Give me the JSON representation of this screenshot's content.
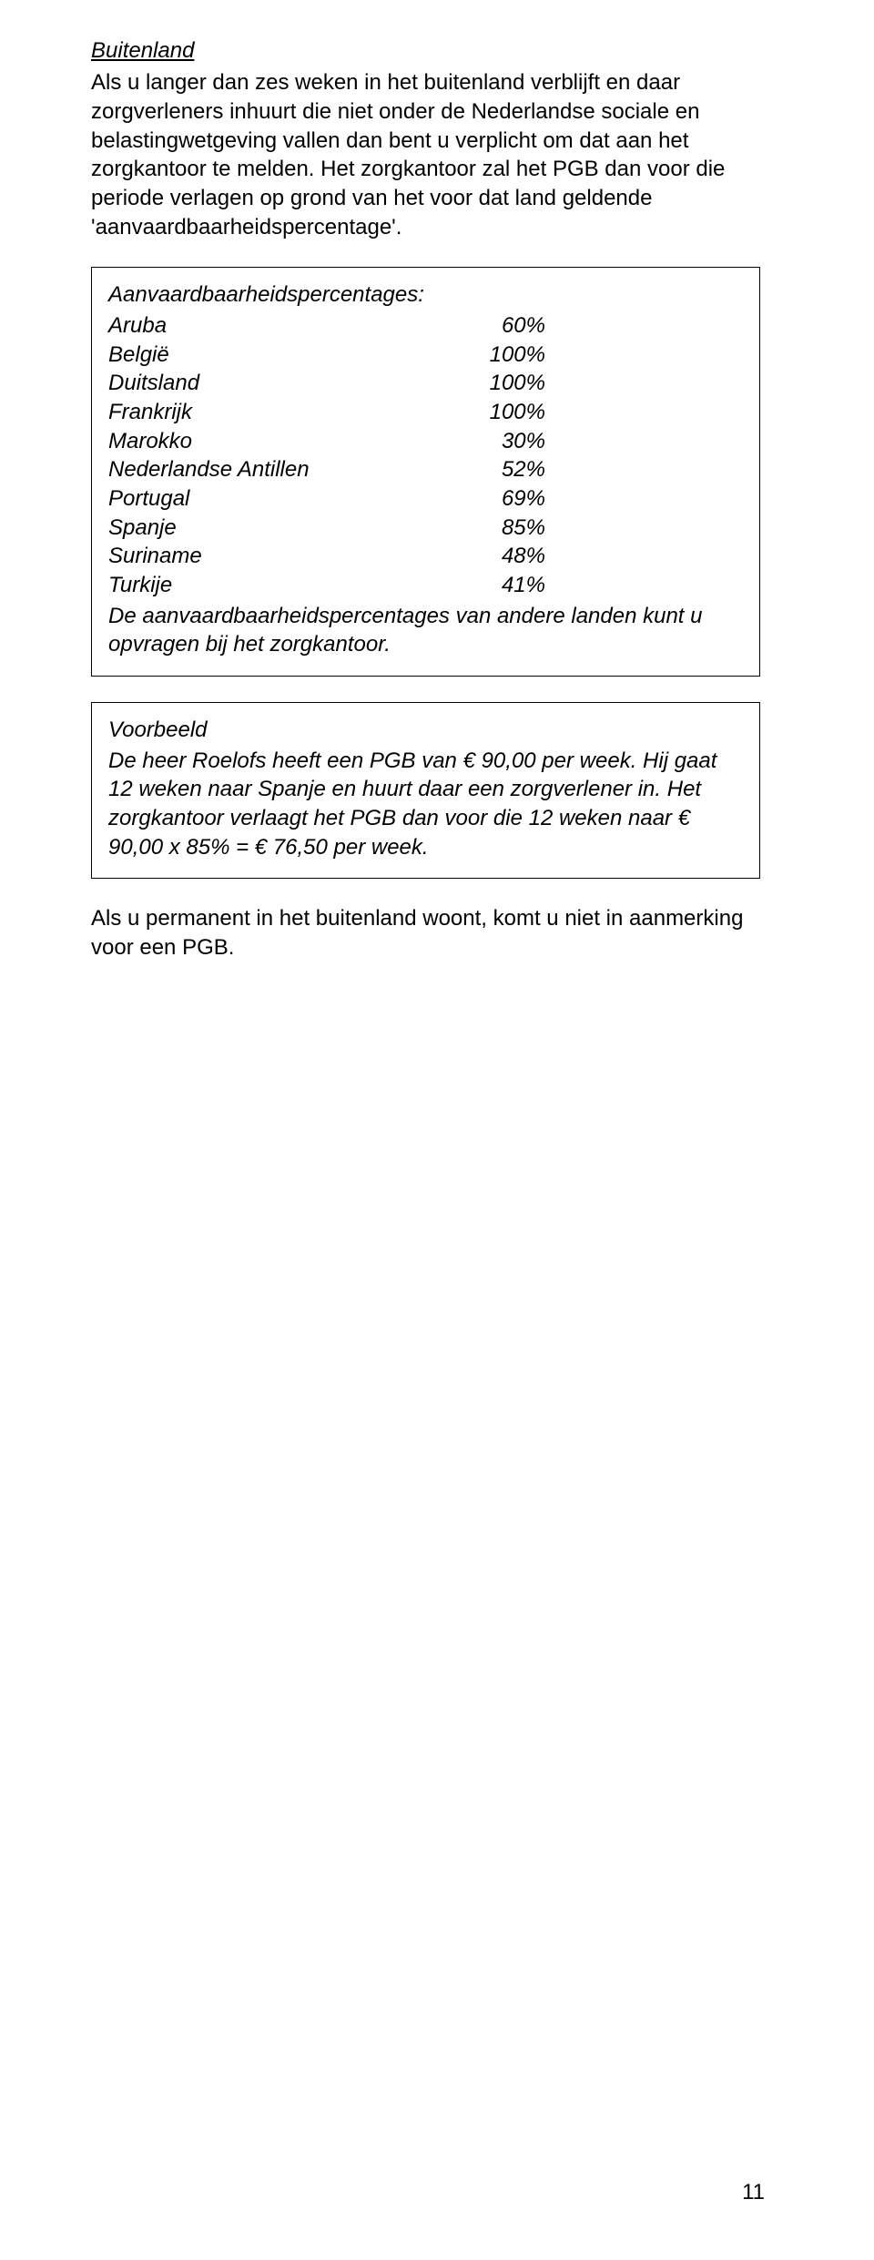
{
  "heading": "Buitenland",
  "intro_para": "Als u langer dan zes weken in het buitenland verblijft en daar zorgverleners inhuurt die niet onder de Nederlandse sociale en belastingwetgeving vallen dan bent u verplicht om dat aan het zorgkantoor te melden. Het zorgkantoor zal het PGB dan voor die periode verlagen op grond van het voor dat land geldende 'aanvaardbaarheidspercentage'.",
  "percentages": {
    "title": "Aanvaardbaarheidspercentages:",
    "rows": [
      {
        "name": "Aruba",
        "value": "60%"
      },
      {
        "name": "België",
        "value": "100%"
      },
      {
        "name": "Duitsland",
        "value": "100%"
      },
      {
        "name": "Frankrijk",
        "value": "100%"
      },
      {
        "name": "Marokko",
        "value": "30%"
      },
      {
        "name": "Nederlandse Antillen",
        "value": "52%"
      },
      {
        "name": "Portugal",
        "value": "69%"
      },
      {
        "name": "Spanje",
        "value": "85%"
      },
      {
        "name": "Suriname",
        "value": "48%"
      },
      {
        "name": "Turkije",
        "value": "41%"
      }
    ],
    "footer": "De aanvaardbaarheidspercentages van andere landen kunt u opvragen bij het zorgkantoor."
  },
  "example": {
    "title": "Voorbeeld",
    "body": "De heer Roelofs heeft een PGB van € 90,00 per week. Hij gaat 12 weken naar Spanje en huurt daar een zorgverlener in. Het zorgkantoor verlaagt het PGB dan voor die 12 weken naar € 90,00 x 85% = € 76,50 per week."
  },
  "closing_para": "Als u permanent in het buitenland woont, komt u niet in aanmerking voor een PGB.",
  "page_number": "11"
}
